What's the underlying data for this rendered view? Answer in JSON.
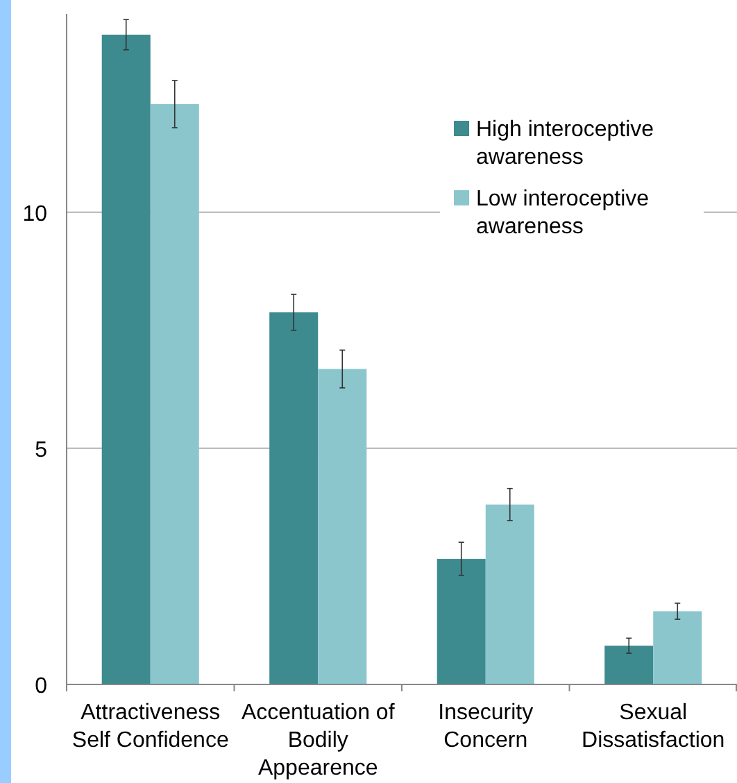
{
  "chart_data": {
    "type": "bar",
    "categories": [
      "Attractiveness Self Confidence",
      "Accentuation of Bodily Appearence",
      "Insecurity Concern",
      "Sexual Dissatisfaction"
    ],
    "series": [
      {
        "name": "High interoceptive awareness",
        "color": "#3d8a8f",
        "values": [
          13.76,
          7.88,
          2.66,
          0.82
        ],
        "errors": [
          0.32,
          0.38,
          0.35,
          0.16
        ]
      },
      {
        "name": "Low interoceptive awareness",
        "color": "#8bc6cd",
        "values": [
          12.29,
          6.68,
          3.81,
          1.55
        ],
        "errors": [
          0.5,
          0.4,
          0.34,
          0.17
        ]
      }
    ],
    "ylim": [
      0,
      14.2
    ],
    "yticks": [
      0,
      5,
      10
    ],
    "grid": "y",
    "legend": "top right"
  }
}
